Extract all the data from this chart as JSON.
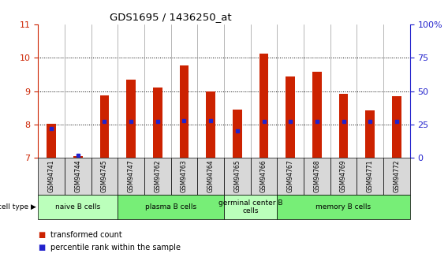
{
  "title": "GDS1695 / 1436250_at",
  "samples": [
    "GSM94741",
    "GSM94744",
    "GSM94745",
    "GSM94747",
    "GSM94762",
    "GSM94763",
    "GSM94764",
    "GSM94765",
    "GSM94766",
    "GSM94767",
    "GSM94768",
    "GSM94769",
    "GSM94771",
    "GSM94772"
  ],
  "transformed_count": [
    8.02,
    7.05,
    8.88,
    9.35,
    9.12,
    9.78,
    9.0,
    8.45,
    10.12,
    9.45,
    9.58,
    8.92,
    8.42,
    8.85
  ],
  "percentile_rank": [
    22,
    2,
    27,
    27,
    27,
    28,
    28,
    20,
    27,
    27,
    27,
    27,
    27,
    27
  ],
  "ymin": 7,
  "ymax": 11,
  "yticks": [
    7,
    8,
    9,
    10,
    11
  ],
  "right_yticks": [
    0,
    25,
    50,
    75,
    100
  ],
  "cell_groups": [
    {
      "label": "naive B cells",
      "start": 0,
      "end": 3,
      "color": "#bbffbb"
    },
    {
      "label": "plasma B cells",
      "start": 3,
      "end": 7,
      "color": "#77ee77"
    },
    {
      "label": "germinal center B\ncells",
      "start": 7,
      "end": 9,
      "color": "#bbffbb"
    },
    {
      "label": "memory B cells",
      "start": 9,
      "end": 14,
      "color": "#77ee77"
    }
  ],
  "bar_color": "#cc2200",
  "dot_color": "#2222cc",
  "bar_bottom": 7.0,
  "left_axis_color": "#cc2200",
  "right_axis_color": "#2222cc",
  "legend_red_label": "transformed count",
  "legend_blue_label": "percentile rank within the sample",
  "cell_type_label": "cell type"
}
